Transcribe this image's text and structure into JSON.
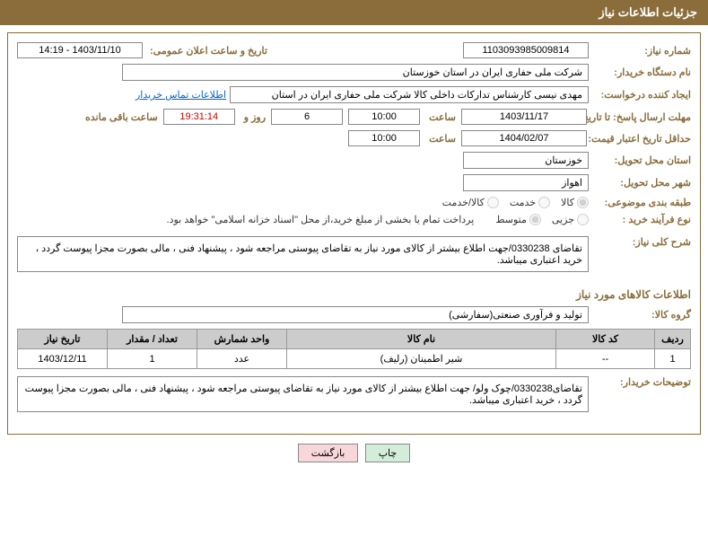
{
  "header": {
    "title": "جزئیات اطلاعات نیاز"
  },
  "fields": {
    "need_number_label": "شماره نیاز:",
    "need_number": "1103093985009814",
    "announce_label": "تاریخ و ساعت اعلان عمومی:",
    "announce_value": "1403/11/10 - 14:19",
    "buyer_org_label": "نام دستگاه خریدار:",
    "buyer_org": "شرکت ملی حفاری ایران در استان خوزستان",
    "requester_label": "ایجاد کننده درخواست:",
    "requester": "مهدی نیسی کارشناس تدارکات داخلی کالا شرکت ملی حفاری ایران در استان ",
    "contact_link": "اطلاعات تماس خریدار",
    "deadline_label": "مهلت ارسال پاسخ: تا تاریخ:",
    "deadline_date": "1403/11/17",
    "time_label": "ساعت",
    "deadline_time": "10:00",
    "days_label": "روز و",
    "days_value": "6",
    "countdown": "19:31:14",
    "remaining_label": "ساعت باقی مانده",
    "validity_label": "حداقل تاریخ اعتبار قیمت: تا تاریخ:",
    "validity_date": "1404/02/07",
    "validity_time": "10:00",
    "delivery_province_label": "استان محل تحویل:",
    "delivery_province": "خوزستان",
    "delivery_city_label": "شهر محل تحویل:",
    "delivery_city": "اهواز",
    "category_label": "طبقه بندی موضوعی:",
    "cat_goods": "کالا",
    "cat_service": "خدمت",
    "cat_both": "کالا/خدمت",
    "process_label": "نوع فرآیند خرید :",
    "proc_small": "جزیی",
    "proc_medium": "متوسط",
    "payment_note": "پرداخت تمام یا بخشی از مبلغ خرید،از محل \"اسناد خزانه اسلامی\" خواهد بود.",
    "summary_label": "شرح کلی نیاز:",
    "summary_text": "تقاضای 0330238/جهت اطلاع بیشتر از کالای مورد نیاز به تقاضای پیوستی مراجعه شود ، پیشنهاد فنی ، مالی بصورت مجزا پیوست گردد ، خرید اعتباری میباشد.",
    "goods_info_title": "اطلاعات کالاهای مورد نیاز",
    "goods_group_label": "گروه کالا:",
    "goods_group": "تولید و فرآوری صنعتی(سفارشی)",
    "buyer_notes_label": "توضیحات خریدار:",
    "buyer_notes": "تقاضای0330238/چوک ولو/ جهت اطلاع بیشتر از کالای مورد نیاز به تقاضای پیوستی مراجعه شود ، پیشنهاد فنی ، مالی بصورت مجزا پیوست گردد ، خرید اعتباری میباشد."
  },
  "table": {
    "headers": {
      "row": "ردیف",
      "code": "کد کالا",
      "name": "نام کالا",
      "unit": "واحد شمارش",
      "qty": "تعداد / مقدار",
      "date": "تاریخ نیاز"
    },
    "rows": [
      {
        "row": "1",
        "code": "--",
        "name": "شیر اطمینان (رلیف)",
        "unit": "عدد",
        "qty": "1",
        "date": "1403/12/11"
      }
    ]
  },
  "buttons": {
    "print": "چاپ",
    "back": "بازگشت"
  }
}
